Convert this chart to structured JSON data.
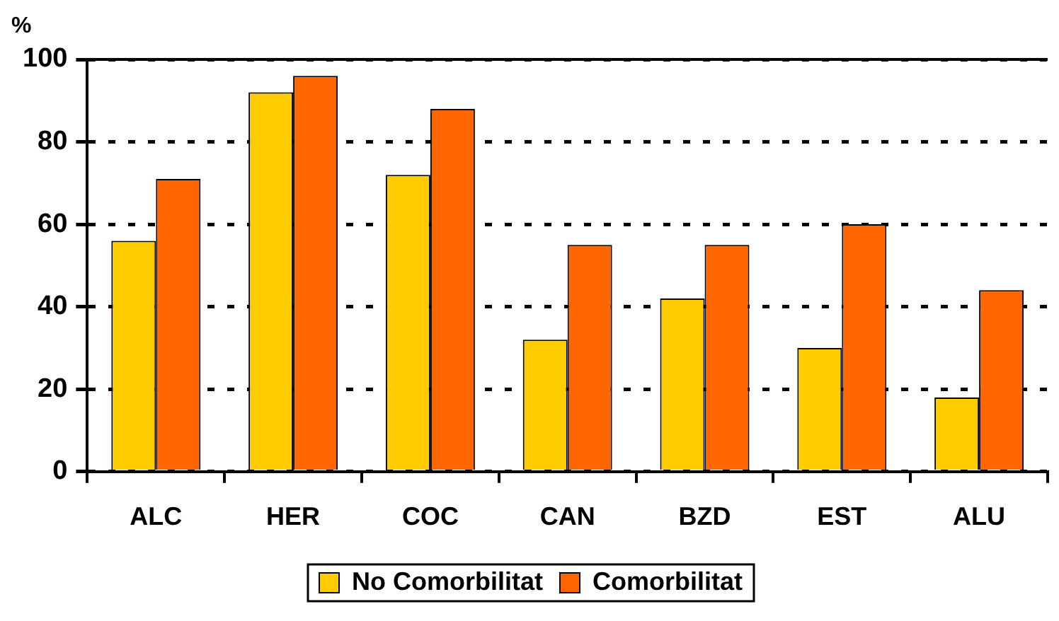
{
  "chart_data": {
    "type": "bar",
    "ylabel": "%",
    "categories": [
      "ALC",
      "HER",
      "COC",
      "CAN",
      "BZD",
      "EST",
      "ALU"
    ],
    "series": [
      {
        "name": "No Comorbilitat",
        "color": "#ffcc00",
        "values": [
          56,
          92,
          72,
          32,
          42,
          30,
          18
        ]
      },
      {
        "name": "Comorbilitat",
        "color": "#ff6600",
        "values": [
          71,
          96,
          88,
          55,
          55,
          60,
          44
        ]
      }
    ],
    "ylim": [
      0,
      100
    ],
    "yticks": [
      0,
      20,
      40,
      60,
      80,
      100
    ],
    "grid": "y",
    "legend": "bottom"
  }
}
